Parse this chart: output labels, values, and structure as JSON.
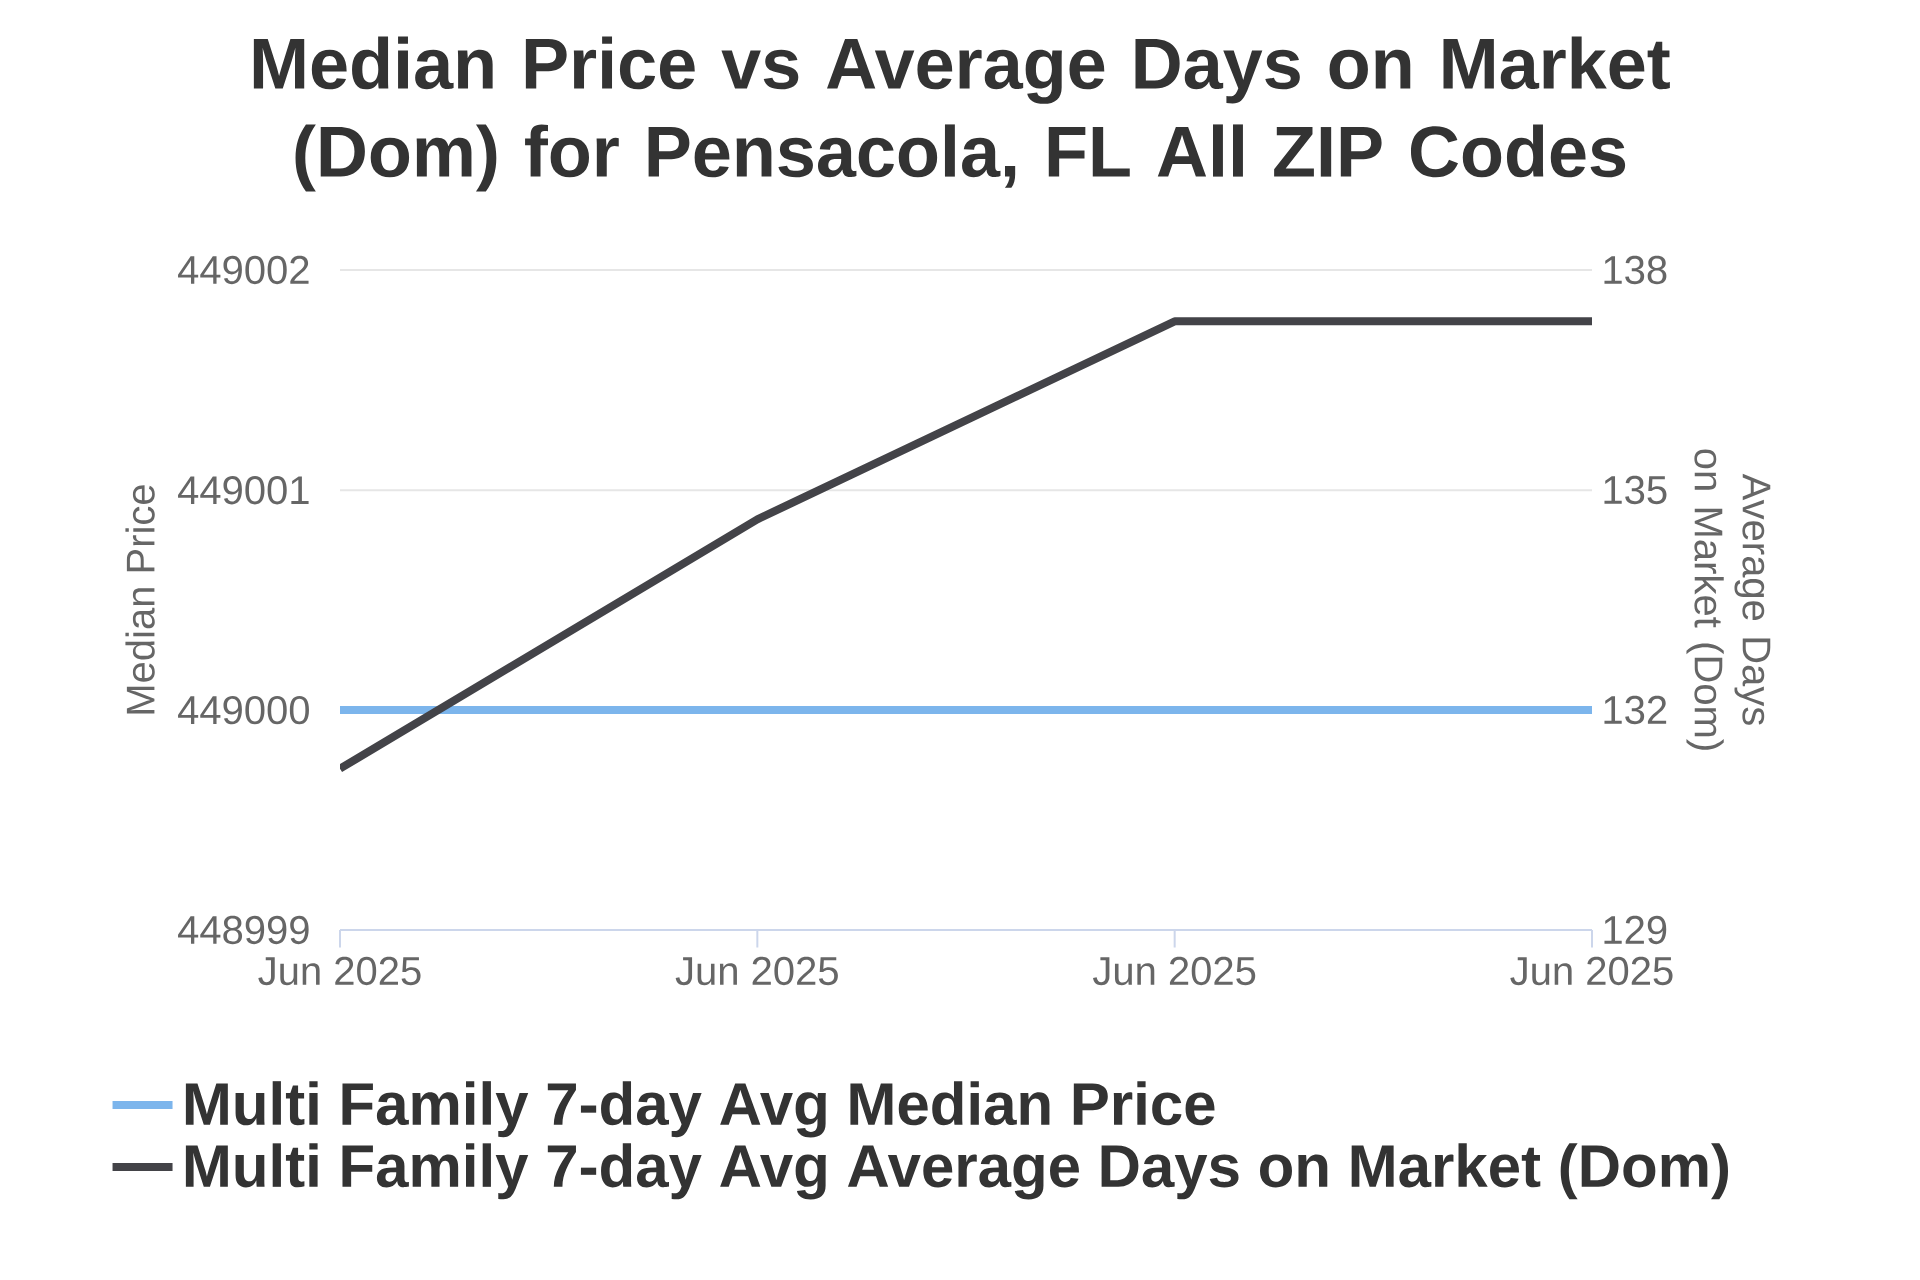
{
  "chart_data": {
    "type": "line",
    "title": "Median Price vs Average Days on Market (Dom) for Pensacola, FL All ZIP Codes",
    "ylabel": "Median Price",
    "y2label": "Average Days on Market (Dom)",
    "categories": [
      "Jun 2025",
      "Jun 2025",
      "Jun 2025",
      "Jun 2025"
    ],
    "series": [
      {
        "name": "Multi Family 7-day Avg Median Price",
        "color": "#7cb5ec",
        "values": [
          449000,
          449000,
          449000,
          449000
        ]
      },
      {
        "name": "Multi Family 7-day Avg Average Days on Market (Dom)",
        "color": "#434348",
        "values": [
          131.2,
          134.6,
          137.3,
          137.3
        ],
        "axis": "y2"
      }
    ],
    "ylim": [
      448999,
      449002
    ],
    "yticks": [
      448999,
      449000,
      449001,
      449002
    ],
    "y2lim": [
      129,
      138
    ],
    "y2ticks": [
      129,
      132,
      135,
      138
    ],
    "grid": "y",
    "legend": "bottom",
    "marker": "none",
    "line_style": "solid"
  }
}
